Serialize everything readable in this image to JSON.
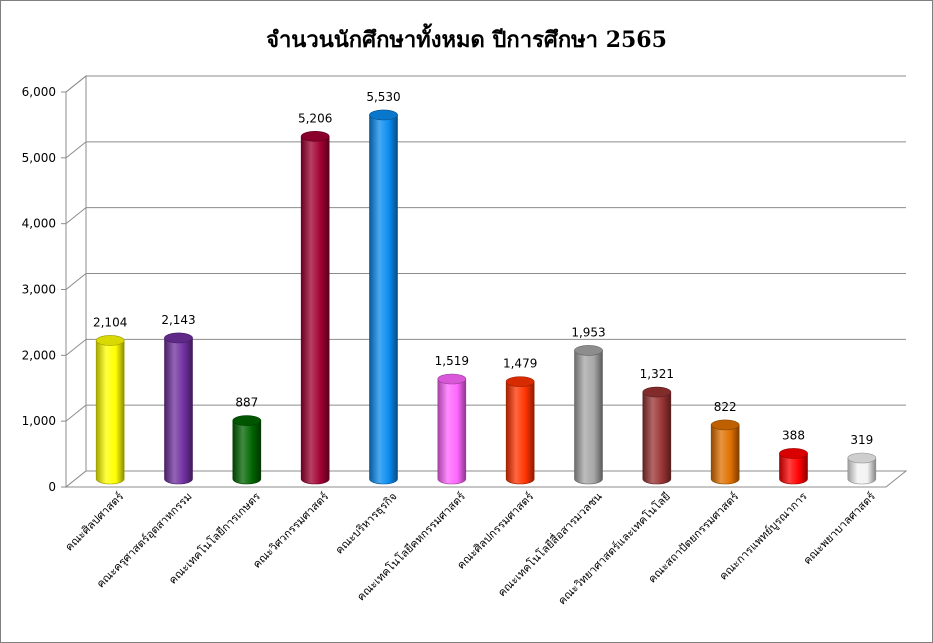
{
  "chart_data": {
    "type": "bar",
    "title": "จำนวนนักศึกษาทั้งหมด ปีการศึกษา 2565",
    "xlabel": "",
    "ylabel": "",
    "ylim": [
      0,
      6000
    ],
    "yticks": [
      "0",
      "1,000",
      "2,000",
      "3,000",
      "4,000",
      "5,000",
      "6,000"
    ],
    "grid": true,
    "legend": "none",
    "categories": [
      "คณะศิลปศาสตร์",
      "คณะครุศาสตร์อุตสาหกรรม",
      "คณะเทคโนโลยีการเกษตร",
      "คณะวิศวกรรมศาสตร์",
      "คณะบริหารธุรกิจ",
      "คณะเทคโนโลยีคหกรรมศาสตร์",
      "คณะศิลปกรรมศาสตร์",
      "คณะเทคโนโลยีสื่อสารมวลชน",
      "คณะวิทยาศาสตร์และเทคโนโลยี",
      "คณะสถาปัตยกรรมศาสตร์",
      "คณะการแพทย์บูรณาการ",
      "คณะพยาบาลศาสตร์"
    ],
    "values": [
      2104,
      2143,
      887,
      5206,
      5530,
      1519,
      1479,
      1953,
      1321,
      822,
      388,
      319
    ],
    "value_labels": [
      "2,104",
      "2,143",
      "887",
      "5,206",
      "5,530",
      "1,519",
      "1,479",
      "1,953",
      "1,321",
      "822",
      "388",
      "319"
    ],
    "colors": [
      "#ffff00",
      "#7030a0",
      "#006400",
      "#a00032",
      "#0a8cf0",
      "#ff66ff",
      "#ff3300",
      "#a6a6a6",
      "#993333",
      "#e07000",
      "#ff0000",
      "#f2f2f2"
    ]
  }
}
